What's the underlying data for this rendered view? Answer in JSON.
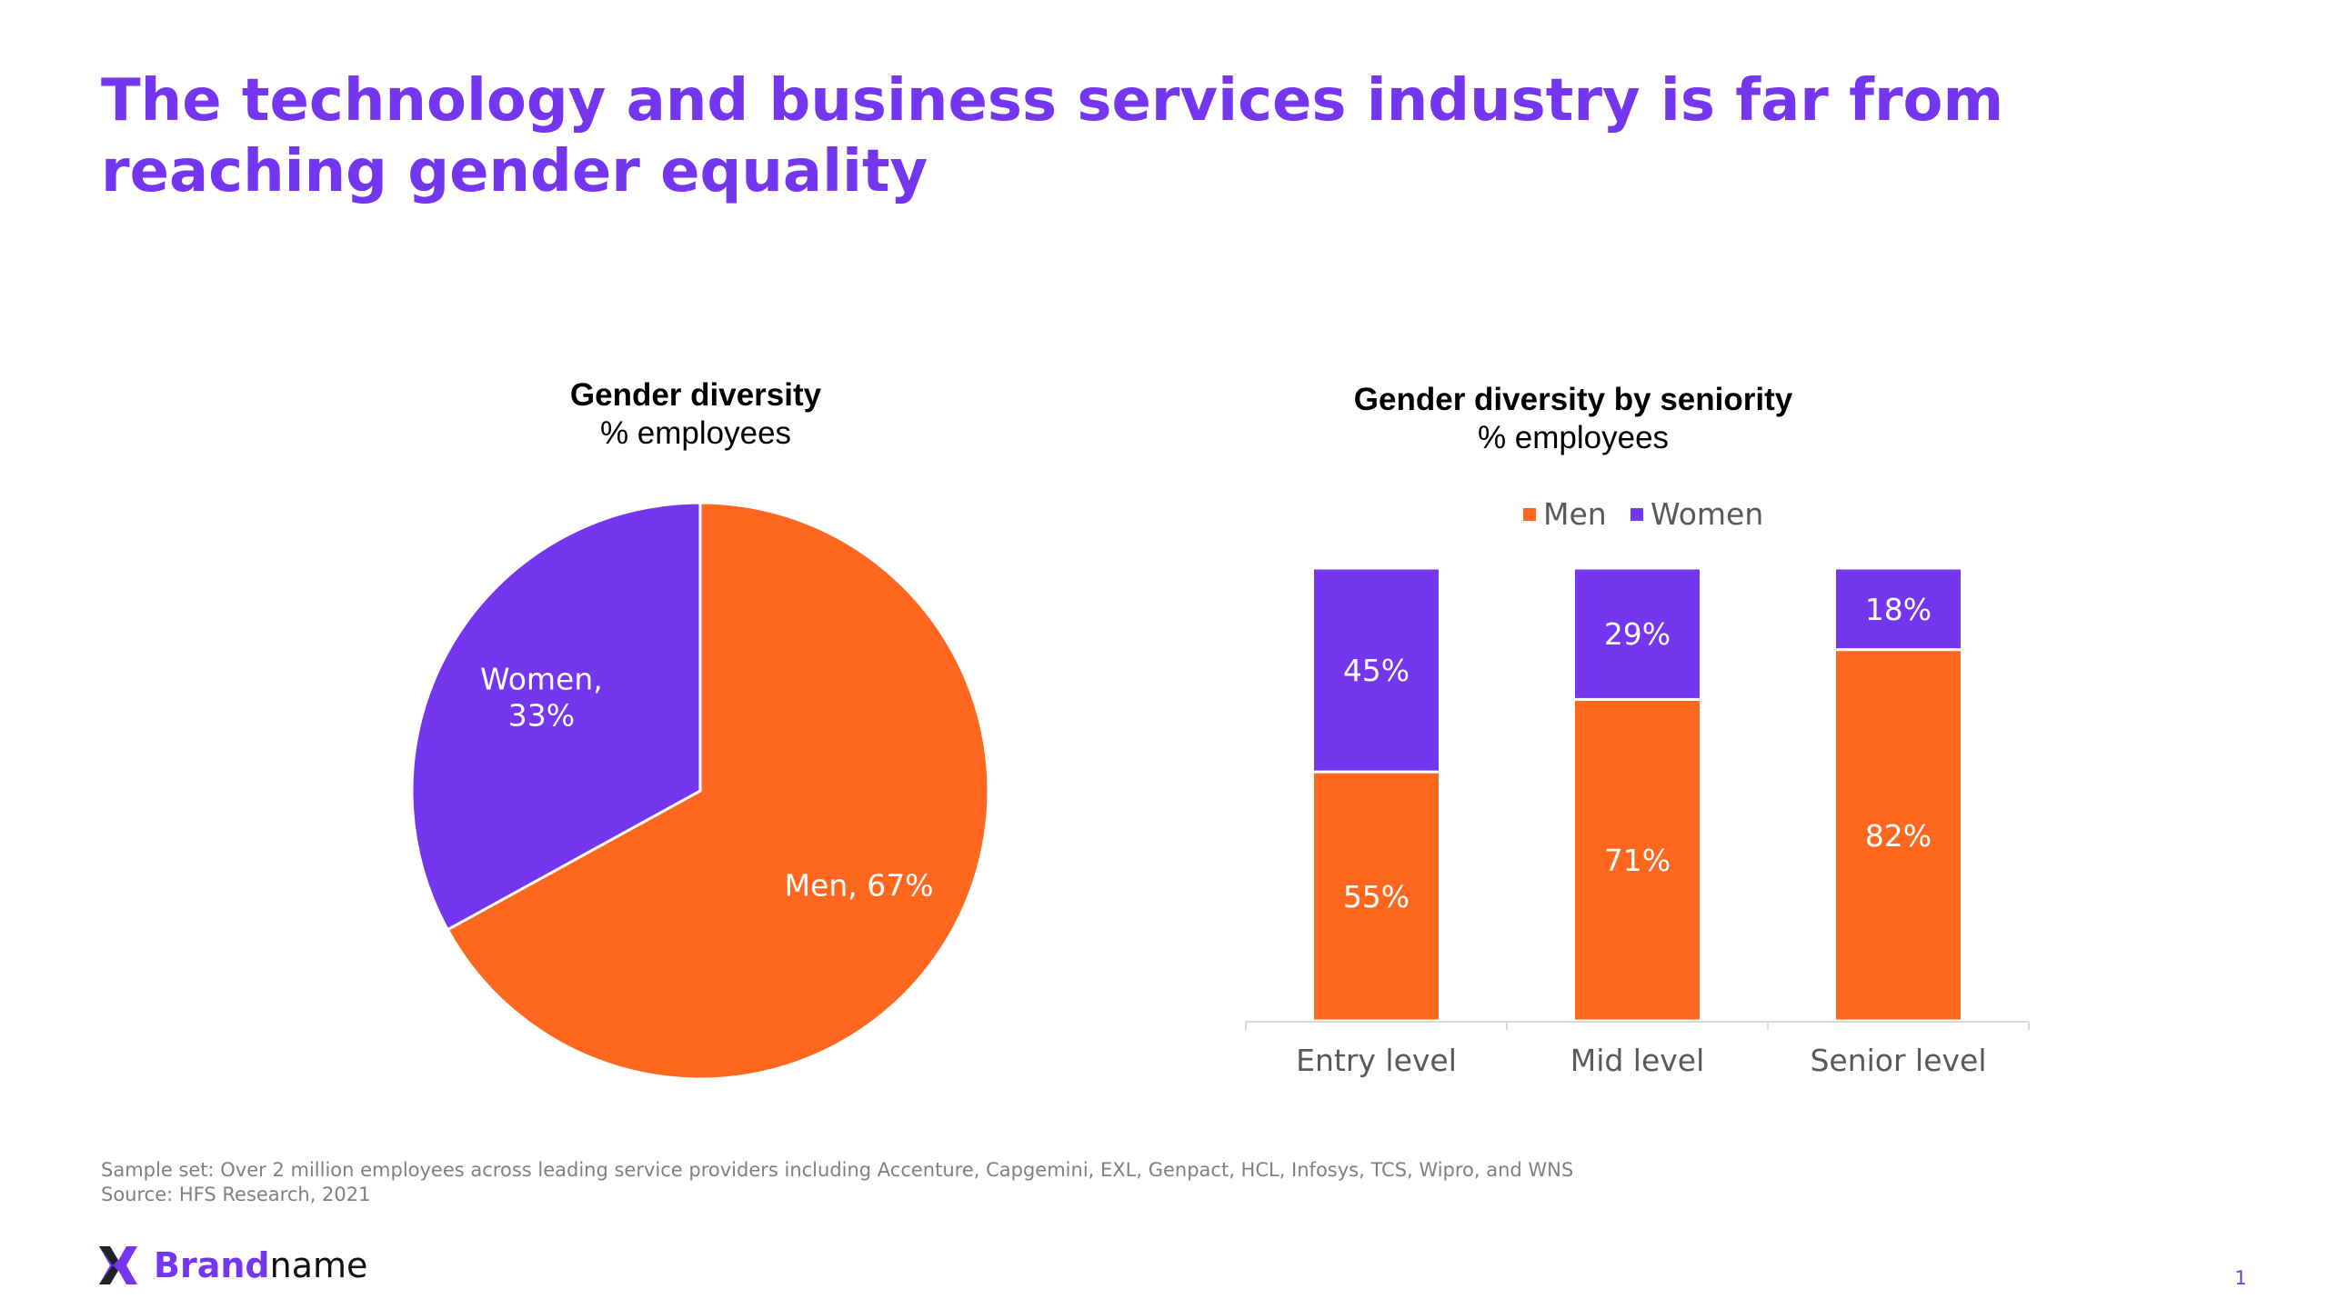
{
  "title": "The technology and business services industry is far from reaching gender equality",
  "colors": {
    "accent": "#7436EE",
    "men": "#FF671F",
    "women": "#7436EE",
    "axis": "#D9D9D9",
    "label_dark": "#595959",
    "label_light": "#FFFFFF",
    "footnote": "#7F7F7F"
  },
  "chart_data": [
    {
      "type": "pie",
      "title": "Gender diversity",
      "subtitle": "% employees",
      "slices": [
        {
          "label": "Men",
          "value": 67,
          "data_label": "Men, 67%",
          "color": "#FF671F"
        },
        {
          "label": "Women",
          "value": 33,
          "data_label_lines": [
            "Women,",
            "33%"
          ],
          "color": "#7436EE"
        }
      ]
    },
    {
      "type": "bar",
      "stacked": true,
      "title": "Gender diversity by seniority",
      "subtitle": "% employees",
      "categories": [
        "Entry level",
        "Mid level",
        "Senior level"
      ],
      "series": [
        {
          "name": "Men",
          "values": [
            55,
            71,
            82
          ],
          "labels": [
            "55%",
            "71%",
            "82%"
          ],
          "color": "#FF671F"
        },
        {
          "name": "Women",
          "values": [
            45,
            29,
            18
          ],
          "labels": [
            "45%",
            "29%",
            "18%"
          ],
          "color": "#7436EE"
        }
      ],
      "ylim": [
        0,
        100
      ],
      "legend": "top-center",
      "grid": false
    }
  ],
  "footnotes": {
    "sample": "Sample set: Over 2 million employees across leading service providers including Accenture, Capgemini, EXL, Genpact, HCL, Infosys, TCS, Wipro, and WNS",
    "source": "Source: HFS Research, 2021"
  },
  "brand": {
    "strong": "Brand",
    "rest": "name",
    "logo_icon": "brand-logo-icon"
  },
  "page_number": "1"
}
